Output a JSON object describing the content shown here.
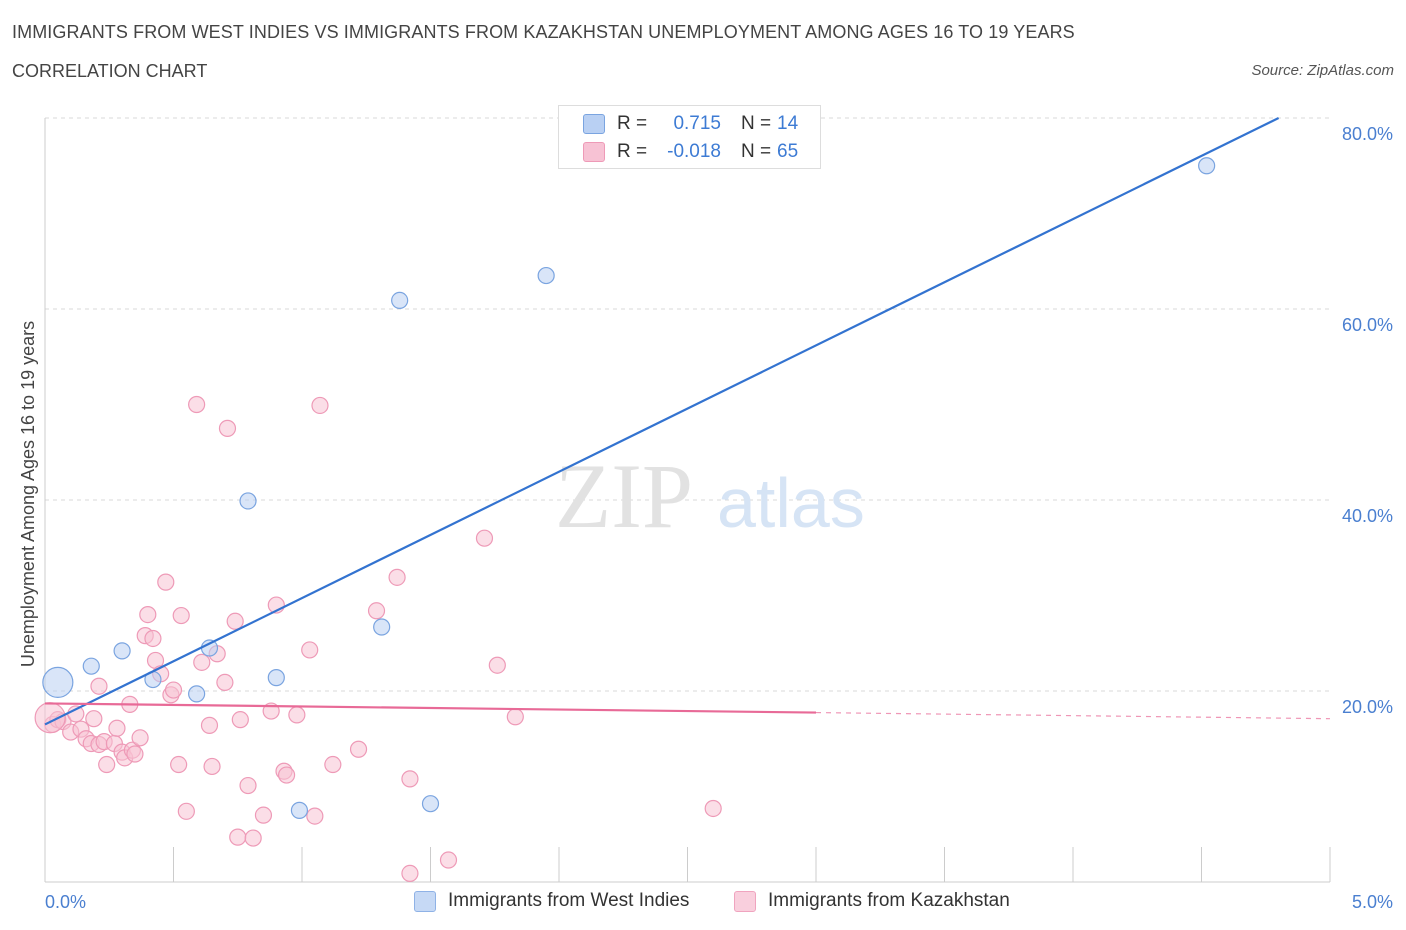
{
  "header": {
    "title": "IMMIGRANTS FROM WEST INDIES VS IMMIGRANTS FROM KAZAKHSTAN UNEMPLOYMENT AMONG AGES 16 TO 19 YEARS",
    "subtitle": "CORRELATION CHART",
    "source": "Source: ZipAtlas.com"
  },
  "watermark": {
    "zip": "ZIP",
    "atlas": "atlas"
  },
  "colors": {
    "blue": "#3373d0",
    "blue_fill": "#b9d0f3",
    "blue_edge": "#7aa4e0",
    "pink": "#e86a97",
    "pink_fill": "#f7c2d4",
    "pink_edge": "#ee9ab7",
    "grid": "#d8d8d8",
    "tick_text": "#4a7fd0"
  },
  "legend": {
    "rows": [
      {
        "r_label": "R =",
        "r_value": "0.715",
        "n_label": "N =",
        "n_value": "14",
        "swatch_color": "#b9d0f3"
      },
      {
        "r_label": "R =",
        "r_value": "-0.018",
        "n_label": "N =",
        "n_value": "65",
        "swatch_color": "#f7c2d4"
      }
    ]
  },
  "chart_data": {
    "type": "scatter",
    "title": "IMMIGRANTS FROM WEST INDIES VS IMMIGRANTS FROM KAZAKHSTAN UNEMPLOYMENT AMONG AGES 16 TO 19 YEARS",
    "xlabel": "",
    "ylabel": "Unemployment Among Ages 16 to 19 years",
    "xlim": [
      0,
      5
    ],
    "ylim": [
      0,
      80
    ],
    "x_tick_labels": [
      "0.0%",
      "5.0%"
    ],
    "y_ticks": [
      20,
      40,
      60,
      80
    ],
    "y_tick_labels": [
      "20.0%",
      "40.0%",
      "60.0%",
      "80.0%"
    ],
    "grid": true,
    "series": [
      {
        "name": "Immigrants from West Indies",
        "color": "#3373d0",
        "points": [
          [
            0.05,
            20.9
          ],
          [
            0.18,
            22.6
          ],
          [
            0.3,
            24.2
          ],
          [
            0.42,
            21.2
          ],
          [
            0.59,
            19.7
          ],
          [
            0.64,
            24.5
          ],
          [
            0.79,
            39.9
          ],
          [
            0.9,
            21.4
          ],
          [
            0.99,
            7.5
          ],
          [
            1.31,
            26.7
          ],
          [
            1.38,
            60.9
          ],
          [
            1.5,
            8.2
          ],
          [
            1.95,
            63.5
          ],
          [
            4.52,
            75.0
          ]
        ],
        "trend": {
          "x0": 0.0,
          "y0": 16.5,
          "x1": 4.8,
          "y1": 80.0,
          "dashed_from_x": null
        }
      },
      {
        "name": "Immigrants from Kazakhstan",
        "color": "#e86a97",
        "points": [
          [
            0.03,
            16.5
          ],
          [
            0.05,
            17.0
          ],
          [
            0.07,
            16.8
          ],
          [
            0.1,
            15.7
          ],
          [
            0.12,
            17.6
          ],
          [
            0.14,
            16.0
          ],
          [
            0.16,
            15.0
          ],
          [
            0.18,
            14.5
          ],
          [
            0.19,
            17.1
          ],
          [
            0.21,
            14.4
          ],
          [
            0.21,
            20.5
          ],
          [
            0.23,
            14.7
          ],
          [
            0.24,
            12.3
          ],
          [
            0.27,
            14.5
          ],
          [
            0.28,
            16.1
          ],
          [
            0.3,
            13.6
          ],
          [
            0.31,
            13.0
          ],
          [
            0.33,
            18.6
          ],
          [
            0.34,
            13.8
          ],
          [
            0.35,
            13.4
          ],
          [
            0.37,
            15.1
          ],
          [
            0.39,
            25.8
          ],
          [
            0.4,
            28.0
          ],
          [
            0.42,
            25.5
          ],
          [
            0.43,
            23.2
          ],
          [
            0.45,
            21.8
          ],
          [
            0.47,
            31.4
          ],
          [
            0.49,
            19.6
          ],
          [
            0.5,
            20.1
          ],
          [
            0.52,
            12.3
          ],
          [
            0.53,
            27.9
          ],
          [
            0.55,
            7.4
          ],
          [
            0.59,
            50.0
          ],
          [
            0.61,
            23.0
          ],
          [
            0.64,
            16.4
          ],
          [
            0.65,
            12.1
          ],
          [
            0.67,
            23.9
          ],
          [
            0.7,
            20.9
          ],
          [
            0.71,
            47.5
          ],
          [
            0.74,
            27.3
          ],
          [
            0.75,
            4.7
          ],
          [
            0.76,
            17.0
          ],
          [
            0.79,
            10.1
          ],
          [
            0.81,
            4.6
          ],
          [
            0.85,
            7.0
          ],
          [
            0.88,
            17.9
          ],
          [
            0.9,
            29.0
          ],
          [
            0.93,
            11.6
          ],
          [
            0.94,
            11.2
          ],
          [
            0.98,
            17.5
          ],
          [
            1.03,
            24.3
          ],
          [
            1.05,
            6.9
          ],
          [
            1.07,
            49.9
          ],
          [
            1.12,
            12.3
          ],
          [
            1.22,
            13.9
          ],
          [
            1.29,
            28.4
          ],
          [
            1.37,
            31.9
          ],
          [
            1.42,
            0.9
          ],
          [
            1.42,
            10.8
          ],
          [
            1.57,
            2.3
          ],
          [
            1.71,
            36.0
          ],
          [
            1.76,
            22.7
          ],
          [
            1.83,
            17.3
          ],
          [
            2.6,
            7.7
          ],
          [
            0.02,
            17.2
          ]
        ],
        "trend": {
          "x0": 0.0,
          "y0": 18.7,
          "x1": 5.0,
          "y1": 17.1,
          "dashed_from_x": 3.0
        }
      }
    ],
    "bottom_legend": [
      "Immigrants from West Indies",
      "Immigrants from Kazakhstan"
    ]
  }
}
